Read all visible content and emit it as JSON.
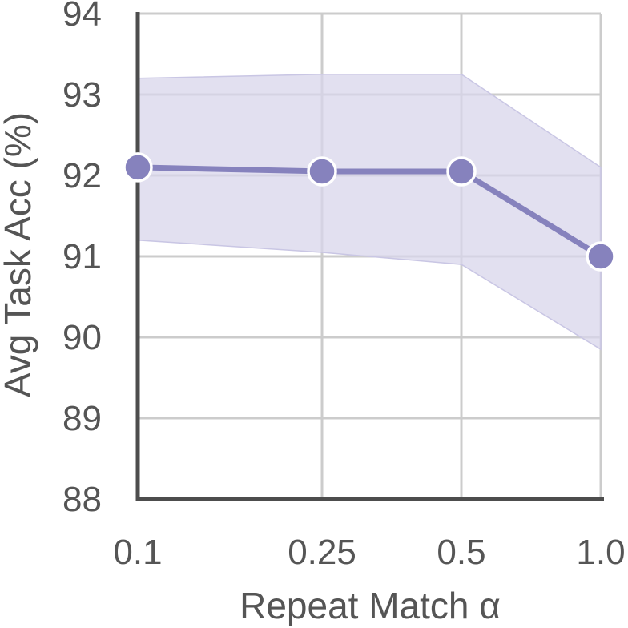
{
  "chart_data": {
    "type": "line",
    "title": "",
    "xlabel": "Repeat Match α",
    "ylabel": "Avg Task Acc (%)",
    "x_scale": "log",
    "x": [
      0.1,
      0.25,
      0.5,
      1.0
    ],
    "x_tick_labels": [
      "0.1",
      "0.25",
      "0.5",
      "1.0"
    ],
    "ylim": [
      88,
      94
    ],
    "y_ticks": [
      88,
      89,
      90,
      91,
      92,
      93,
      94
    ],
    "y_tick_labels": [
      "88",
      "89",
      "90",
      "91",
      "92",
      "93",
      "94"
    ],
    "grid": true,
    "legend": "none",
    "series": [
      {
        "values": [
          92.1,
          92.05,
          92.05,
          91.0
        ],
        "band_upper": [
          93.2,
          93.25,
          93.25,
          92.1
        ],
        "band_lower": [
          91.2,
          91.05,
          90.9,
          89.85
        ],
        "color": "#8682bd",
        "band_color": "#d8d6eb"
      }
    ]
  }
}
